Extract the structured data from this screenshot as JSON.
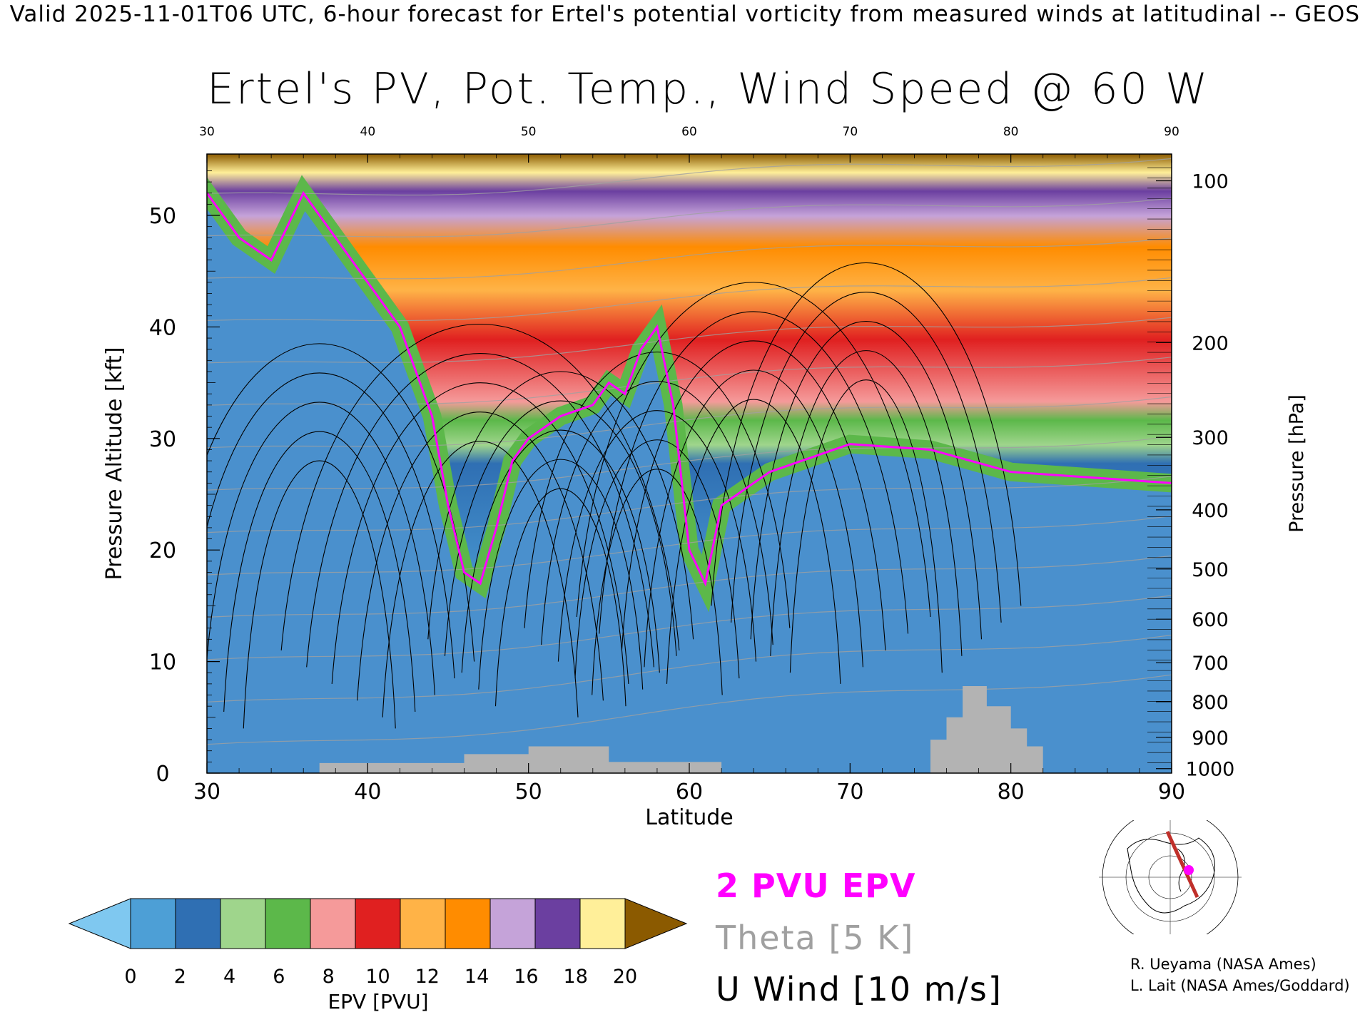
{
  "header": "Valid 2025-11-01T06 UTC, 6-hour forecast for Ertel's potential vorticity from measured winds at latitudinal -- GEOS",
  "chart_data": {
    "type": "heatmap",
    "title": "Ertel's PV, Pot. Temp., Wind Speed @ 60 W",
    "xlabel": "Latitude",
    "ylabel": "Pressure Altitude [kft]",
    "y2label": "Pressure [hPa]",
    "xlim": [
      30,
      90
    ],
    "ylim": [
      0,
      55.5
    ],
    "x_ticks": [
      30,
      40,
      50,
      60,
      70,
      80,
      90
    ],
    "top_ticks": [
      30,
      40,
      50,
      60,
      70,
      80,
      90
    ],
    "y_ticks": [
      0,
      10,
      20,
      30,
      40,
      50
    ],
    "pressure_ticks": [
      {
        "hPa": "100",
        "kft": 53.1
      },
      {
        "hPa": "200",
        "kft": 38.6
      },
      {
        "hPa": "300",
        "kft": 30.1
      },
      {
        "hPa": "400",
        "kft": 23.6
      },
      {
        "hPa": "500",
        "kft": 18.3
      },
      {
        "hPa": "600",
        "kft": 13.8
      },
      {
        "hPa": "700",
        "kft": 9.9
      },
      {
        "hPa": "800",
        "kft": 6.4
      },
      {
        "hPa": "900",
        "kft": 3.2
      },
      {
        "hPa": "1000",
        "kft": 0.4
      }
    ],
    "colorbar": {
      "label": "EPV [PVU]",
      "ticks": [
        0,
        2,
        4,
        6,
        8,
        10,
        12,
        14,
        16,
        18,
        20
      ],
      "bins": [
        "#4d9fd6",
        "#2f6fb3",
        "#9fd58c",
        "#5cb84a",
        "#f59a9a",
        "#e02020",
        "#ffb347",
        "#ff8c00",
        "#c5a3d9",
        "#6b3fa0",
        "#ffef99"
      ],
      "under_color": "#7fc8f0",
      "over_color": "#8b5a00"
    },
    "tropopause_2pvu": [
      [
        30,
        52
      ],
      [
        32,
        48
      ],
      [
        34,
        46
      ],
      [
        36,
        52
      ],
      [
        38,
        48
      ],
      [
        40,
        44
      ],
      [
        42,
        40
      ],
      [
        43,
        36
      ],
      [
        44,
        32
      ],
      [
        45,
        24
      ],
      [
        46,
        18
      ],
      [
        47,
        17
      ],
      [
        48,
        22
      ],
      [
        49,
        28
      ],
      [
        50,
        30
      ],
      [
        52,
        32
      ],
      [
        54,
        33
      ],
      [
        55,
        35
      ],
      [
        56,
        34
      ],
      [
        57,
        38
      ],
      [
        58,
        40
      ],
      [
        59,
        33
      ],
      [
        60,
        20
      ],
      [
        61,
        17
      ],
      [
        62,
        24
      ],
      [
        63,
        25
      ],
      [
        65,
        27
      ],
      [
        67,
        28
      ],
      [
        70,
        29.5
      ],
      [
        75,
        29
      ],
      [
        80,
        27
      ],
      [
        85,
        26.5
      ],
      [
        90,
        26
      ]
    ],
    "theta_levels_K": [
      290,
      300,
      310,
      320,
      330,
      340,
      350,
      360,
      370,
      380,
      390,
      400,
      410,
      420
    ],
    "u_wind_contours": [
      0,
      10,
      20,
      30,
      40,
      50
    ],
    "terrain_kft": [
      [
        30,
        0
      ],
      [
        37,
        0
      ],
      [
        37,
        0.9
      ],
      [
        46,
        0.9
      ],
      [
        46,
        1.7
      ],
      [
        50,
        1.7
      ],
      [
        50,
        2.4
      ],
      [
        55,
        2.4
      ],
      [
        55,
        1
      ],
      [
        62,
        1
      ],
      [
        62,
        0
      ],
      [
        75,
        0
      ],
      [
        75,
        3
      ],
      [
        76,
        3
      ],
      [
        76,
        5
      ],
      [
        77,
        5
      ],
      [
        77,
        7.8
      ],
      [
        78.5,
        7.8
      ],
      [
        78.5,
        6
      ],
      [
        80,
        6
      ],
      [
        80,
        4
      ],
      [
        81,
        4
      ],
      [
        81,
        2.4
      ],
      [
        82,
        2.4
      ],
      [
        82,
        0
      ],
      [
        90,
        0
      ]
    ],
    "legend": {
      "pv": "2 PVU EPV",
      "theta": "Theta [5 K]",
      "u": "U Wind [10 m/s]"
    }
  },
  "credits": [
    "R. Ueyama (NASA Ames)",
    "L. Lait (NASA Ames/Goddard)"
  ],
  "colors": {
    "tropopause": "#ff00ff",
    "theta": "#a0a0a0",
    "terrain": "#b3b3b3"
  }
}
